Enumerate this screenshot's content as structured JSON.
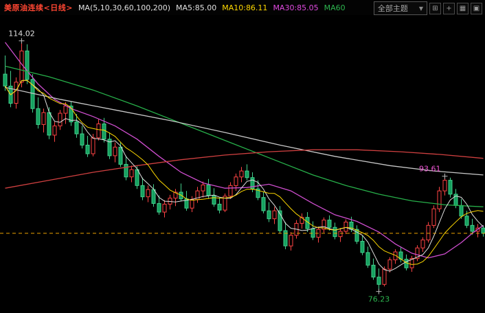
{
  "header": {
    "symbol": "美原油连续<日线>",
    "symbol_color": "#ff4632",
    "ma_group": "MA(5,10,30,60,100,200)",
    "ma_values": [
      {
        "label": "MA5:85.00",
        "color": "#e0e0e0"
      },
      {
        "label": "MA10:86.11",
        "color": "#ffd900"
      },
      {
        "label": "MA30:85.05",
        "color": "#e14ae1"
      },
      {
        "label": "MA60",
        "color": "#2db54f"
      }
    ],
    "theme_selector": "全部主题",
    "dropdown_arrow": "▼"
  },
  "toolbar": {
    "icons": [
      {
        "name": "multi-pane-layout-icon",
        "glyph": "⊞"
      },
      {
        "name": "add-pane-icon",
        "glyph": "+"
      },
      {
        "name": "grid-layout-icon",
        "glyph": "▦"
      },
      {
        "name": "single-pane-icon",
        "glyph": "▣"
      }
    ]
  },
  "chart_data": {
    "type": "candlestick",
    "title": "美原油连续 日线 (US Crude Oil Continuous, Daily)",
    "y_domain": [
      73.4,
      117.9
    ],
    "last_price": 85.0,
    "legend": [
      "MA5",
      "MA10",
      "MA30",
      "MA60",
      "MA100",
      "MA200"
    ],
    "grid": false,
    "colors": {
      "up": "#ff4444",
      "down_fill": "#15a15f",
      "down_stroke": "#43cf8c",
      "dashed": "#f0a500",
      "background": "#000000"
    },
    "annotations": [
      {
        "text": "114.02",
        "index": 3,
        "price": 114.02,
        "position": "above",
        "anchor": "middle",
        "color": "#e0e0e0"
      },
      {
        "text": "93.61",
        "index": 80,
        "price": 93.61,
        "position": "above",
        "anchor": "end",
        "color": "#f055d5"
      },
      {
        "text": "76.23",
        "index": 68,
        "price": 76.23,
        "position": "below",
        "anchor": "middle",
        "color": "#2db54f"
      }
    ],
    "computed_ma": [
      {
        "name": "MA5",
        "window": 5,
        "color": "#e0e0e0"
      },
      {
        "name": "MA10",
        "window": 10,
        "color": "#ffd900"
      }
    ],
    "ma_lines": [
      {
        "name": "MA30",
        "color": "#cf4ecf",
        "points": [
          [
            0,
            113.8
          ],
          [
            3,
            110.5
          ],
          [
            6,
            107.5
          ],
          [
            9,
            105.2
          ],
          [
            12,
            103.8
          ],
          [
            16,
            102.6
          ],
          [
            20,
            101.2
          ],
          [
            24,
            99.2
          ],
          [
            28,
            96.6
          ],
          [
            32,
            94.2
          ],
          [
            36,
            92.6
          ],
          [
            40,
            91.8
          ],
          [
            44,
            91.9
          ],
          [
            48,
            92.4
          ],
          [
            52,
            91.4
          ],
          [
            56,
            89.5
          ],
          [
            60,
            87.8
          ],
          [
            64,
            86.8
          ],
          [
            68,
            85.2
          ],
          [
            71,
            83.4
          ],
          [
            74,
            82.0
          ],
          [
            77,
            81.3
          ],
          [
            80,
            81.9
          ],
          [
            83,
            83.6
          ],
          [
            85,
            85.0
          ],
          [
            87,
            86.2
          ]
        ]
      },
      {
        "name": "MA60",
        "color": "#27b04a",
        "points": [
          [
            0,
            110.2
          ],
          [
            8,
            108.6
          ],
          [
            16,
            106.6
          ],
          [
            24,
            104.2
          ],
          [
            32,
            101.6
          ],
          [
            40,
            99.0
          ],
          [
            48,
            96.4
          ],
          [
            56,
            93.8
          ],
          [
            62,
            92.2
          ],
          [
            68,
            90.9
          ],
          [
            74,
            89.9
          ],
          [
            80,
            89.3
          ],
          [
            87,
            89.0
          ]
        ]
      },
      {
        "name": "MA100",
        "color": "#c8c8c8",
        "points": [
          [
            0,
            107.0
          ],
          [
            10,
            105.2
          ],
          [
            20,
            103.6
          ],
          [
            30,
            102.0
          ],
          [
            40,
            100.2
          ],
          [
            50,
            98.3
          ],
          [
            60,
            96.6
          ],
          [
            70,
            95.2
          ],
          [
            78,
            94.4
          ],
          [
            87,
            93.8
          ]
        ]
      },
      {
        "name": "MA200",
        "color": "#d04040",
        "points": [
          [
            0,
            91.8
          ],
          [
            8,
            93.0
          ],
          [
            16,
            94.2
          ],
          [
            24,
            95.2
          ],
          [
            32,
            96.1
          ],
          [
            40,
            96.8
          ],
          [
            48,
            97.3
          ],
          [
            56,
            97.6
          ],
          [
            64,
            97.6
          ],
          [
            72,
            97.3
          ],
          [
            79,
            96.9
          ],
          [
            87,
            96.3
          ]
        ]
      }
    ],
    "candles": [
      [
        109.0,
        111.8,
        106.5,
        107.2
      ],
      [
        107.2,
        109.5,
        104.0,
        104.6
      ],
      [
        104.6,
        108.5,
        103.8,
        107.8
      ],
      [
        107.8,
        114.02,
        107.0,
        112.5
      ],
      [
        112.5,
        113.5,
        107.5,
        108.2
      ],
      [
        108.2,
        109.0,
        103.2,
        103.8
      ],
      [
        103.8,
        105.5,
        100.8,
        101.4
      ],
      [
        101.4,
        103.8,
        100.2,
        103.2
      ],
      [
        103.2,
        104.0,
        99.2,
        99.8
      ],
      [
        99.8,
        101.8,
        98.8,
        101.2
      ],
      [
        101.2,
        103.6,
        100.6,
        103.1
      ],
      [
        103.1,
        104.8,
        101.5,
        104.2
      ],
      [
        104.2,
        104.9,
        101.2,
        101.8
      ],
      [
        101.8,
        103.0,
        99.4,
        100.0
      ],
      [
        100.0,
        101.2,
        97.8,
        98.3
      ],
      [
        98.3,
        99.7,
        96.5,
        97.0
      ],
      [
        97.0,
        100.0,
        96.6,
        99.4
      ],
      [
        99.4,
        102.2,
        99.0,
        101.5
      ],
      [
        101.5,
        102.4,
        98.7,
        99.2
      ],
      [
        99.2,
        100.2,
        96.2,
        96.7
      ],
      [
        96.7,
        98.7,
        95.7,
        98.0
      ],
      [
        98.0,
        98.8,
        95.0,
        95.4
      ],
      [
        95.4,
        96.7,
        93.0,
        93.5
      ],
      [
        93.5,
        95.2,
        92.7,
        94.6
      ],
      [
        94.6,
        95.1,
        91.7,
        92.2
      ],
      [
        92.2,
        93.4,
        90.0,
        90.5
      ],
      [
        90.5,
        92.2,
        89.7,
        91.6
      ],
      [
        91.6,
        92.4,
        89.0,
        89.5
      ],
      [
        89.5,
        90.7,
        87.8,
        88.2
      ],
      [
        88.2,
        90.0,
        87.4,
        89.4
      ],
      [
        89.4,
        90.8,
        88.6,
        90.3
      ],
      [
        90.3,
        91.7,
        89.1,
        91.2
      ],
      [
        91.2,
        92.5,
        89.8,
        90.2
      ],
      [
        90.2,
        91.4,
        88.4,
        88.8
      ],
      [
        88.8,
        90.6,
        88.2,
        90.1
      ],
      [
        90.1,
        92.0,
        89.6,
        91.4
      ],
      [
        91.4,
        92.8,
        90.4,
        92.3
      ],
      [
        92.3,
        93.2,
        90.2,
        90.7
      ],
      [
        90.7,
        91.8,
        89.0,
        89.4
      ],
      [
        89.4,
        90.4,
        88.0,
        88.5
      ],
      [
        88.5,
        91.0,
        88.2,
        90.6
      ],
      [
        90.6,
        92.7,
        90.2,
        92.2
      ],
      [
        92.2,
        94.0,
        91.4,
        93.5
      ],
      [
        93.5,
        95.0,
        92.7,
        94.4
      ],
      [
        94.4,
        95.4,
        93.0,
        93.4
      ],
      [
        93.4,
        94.2,
        91.2,
        91.7
      ],
      [
        91.7,
        93.0,
        90.0,
        90.4
      ],
      [
        90.4,
        91.2,
        88.0,
        88.4
      ],
      [
        88.4,
        89.7,
        86.7,
        87.2
      ],
      [
        87.2,
        89.0,
        86.4,
        88.4
      ],
      [
        88.4,
        89.1,
        85.0,
        85.4
      ],
      [
        85.4,
        86.7,
        82.6,
        83.1
      ],
      [
        83.1,
        85.2,
        82.4,
        84.7
      ],
      [
        84.7,
        87.0,
        84.2,
        86.5
      ],
      [
        86.5,
        88.0,
        85.7,
        87.4
      ],
      [
        87.4,
        88.2,
        85.2,
        85.7
      ],
      [
        85.7,
        86.8,
        84.0,
        84.4
      ],
      [
        84.4,
        86.0,
        83.6,
        85.6
      ],
      [
        85.6,
        87.4,
        85.1,
        87.0
      ],
      [
        87.0,
        87.7,
        85.4,
        85.9
      ],
      [
        85.9,
        86.6,
        84.1,
        84.5
      ],
      [
        84.5,
        85.8,
        83.7,
        85.3
      ],
      [
        85.3,
        87.1,
        84.9,
        86.7
      ],
      [
        86.7,
        87.5,
        85.2,
        85.6
      ],
      [
        85.6,
        86.2,
        83.4,
        83.8
      ],
      [
        83.8,
        84.6,
        81.7,
        82.1
      ],
      [
        82.1,
        83.0,
        79.8,
        80.2
      ],
      [
        80.2,
        81.2,
        78.0,
        78.4
      ],
      [
        78.4,
        79.7,
        76.23,
        77.3
      ],
      [
        77.3,
        80.0,
        77.0,
        79.6
      ],
      [
        79.6,
        81.4,
        79.1,
        81.0
      ],
      [
        81.0,
        82.6,
        80.4,
        82.2
      ],
      [
        82.2,
        83.0,
        80.6,
        81.1
      ],
      [
        81.1,
        81.8,
        79.4,
        79.8
      ],
      [
        79.8,
        81.6,
        79.2,
        81.2
      ],
      [
        81.2,
        83.2,
        80.8,
        82.8
      ],
      [
        82.8,
        84.4,
        82.2,
        84.0
      ],
      [
        84.0,
        86.7,
        83.6,
        86.2
      ],
      [
        86.2,
        89.2,
        85.8,
        88.7
      ],
      [
        88.7,
        92.0,
        88.2,
        91.4
      ],
      [
        91.4,
        93.61,
        90.7,
        93.0
      ],
      [
        93.0,
        93.4,
        90.4,
        90.9
      ],
      [
        90.9,
        91.7,
        88.8,
        89.2
      ],
      [
        89.2,
        90.2,
        87.2,
        87.6
      ],
      [
        87.6,
        88.4,
        85.8,
        86.2
      ],
      [
        86.2,
        87.2,
        84.8,
        85.3
      ],
      [
        85.3,
        86.4,
        84.4,
        85.8
      ],
      [
        85.8,
        86.2,
        84.5,
        85.0
      ]
    ]
  }
}
